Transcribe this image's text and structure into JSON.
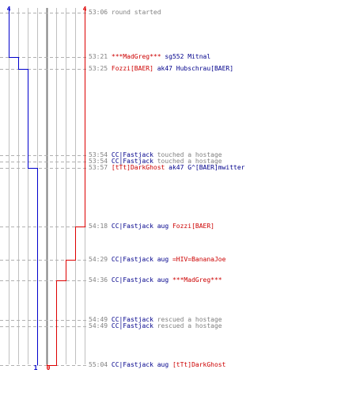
{
  "colors": {
    "team_blue": "#0000cc",
    "team_red": "#dd0000",
    "grid": "#c0c0c0",
    "center_line": "#808080",
    "dash": "#b0b0b0",
    "text_gray": "#808080",
    "name_red": "#cc0000",
    "name_blue": "#00008b"
  },
  "counters": {
    "blue_start": "4",
    "red_start": "4",
    "blue_end": "1",
    "red_end": "0"
  },
  "events": [
    {
      "time": "53:06",
      "parts": [
        {
          "text": "round started",
          "color": "gray"
        }
      ]
    },
    {
      "time": "53:21",
      "parts": [
        {
          "text": "***MadGreg***",
          "color": "red"
        },
        {
          "text": " sg552 ",
          "color": "blue"
        },
        {
          "text": "Mitnal",
          "color": "blue"
        }
      ]
    },
    {
      "time": "53:25",
      "parts": [
        {
          "text": "Fozzi[BAER]",
          "color": "red"
        },
        {
          "text": " ak47 ",
          "color": "blue"
        },
        {
          "text": "Hubschrau[BAER]",
          "color": "blue"
        }
      ]
    },
    {
      "time": "53:54",
      "parts": [
        {
          "text": "CC|Fastjack",
          "color": "blue"
        },
        {
          "text": " touched a hostage",
          "color": "gray"
        }
      ]
    },
    {
      "time": "53:54",
      "parts": [
        {
          "text": "CC|Fastjack",
          "color": "blue"
        },
        {
          "text": " touched a hostage",
          "color": "gray"
        }
      ]
    },
    {
      "time": "53:57",
      "parts": [
        {
          "text": "[tTt]DarkGhost",
          "color": "red"
        },
        {
          "text": " ak47 ",
          "color": "blue"
        },
        {
          "text": "G^[BAER]mwitter",
          "color": "blue"
        }
      ]
    },
    {
      "time": "54:18",
      "parts": [
        {
          "text": "CC|Fastjack",
          "color": "blue"
        },
        {
          "text": " aug ",
          "color": "blue"
        },
        {
          "text": "Fozzi[BAER]",
          "color": "red"
        }
      ]
    },
    {
      "time": "54:29",
      "parts": [
        {
          "text": "CC|Fastjack",
          "color": "blue"
        },
        {
          "text": " aug ",
          "color": "blue"
        },
        {
          "text": "=HIV=BananaJoe",
          "color": "red"
        }
      ]
    },
    {
      "time": "54:36",
      "parts": [
        {
          "text": "CC|Fastjack",
          "color": "blue"
        },
        {
          "text": " aug ",
          "color": "blue"
        },
        {
          "text": "***MadGreg***",
          "color": "red"
        }
      ]
    },
    {
      "time": "54:49",
      "parts": [
        {
          "text": "CC|Fastjack",
          "color": "blue"
        },
        {
          "text": " rescued a hostage",
          "color": "gray"
        }
      ]
    },
    {
      "time": "54:49",
      "parts": [
        {
          "text": "CC|Fastjack",
          "color": "blue"
        },
        {
          "text": " rescued a hostage",
          "color": "gray"
        }
      ]
    },
    {
      "time": "55:04",
      "parts": [
        {
          "text": "CC|Fastjack",
          "color": "blue"
        },
        {
          "text": " aug ",
          "color": "blue"
        },
        {
          "text": "[tTt]DarkGhost",
          "color": "red"
        }
      ]
    }
  ],
  "blue_alive": [
    4,
    3,
    2,
    2,
    2,
    1,
    1,
    1,
    1,
    1,
    1,
    1
  ],
  "red_alive": [
    4,
    4,
    4,
    4,
    4,
    4,
    3,
    2,
    1,
    1,
    1,
    0
  ]
}
